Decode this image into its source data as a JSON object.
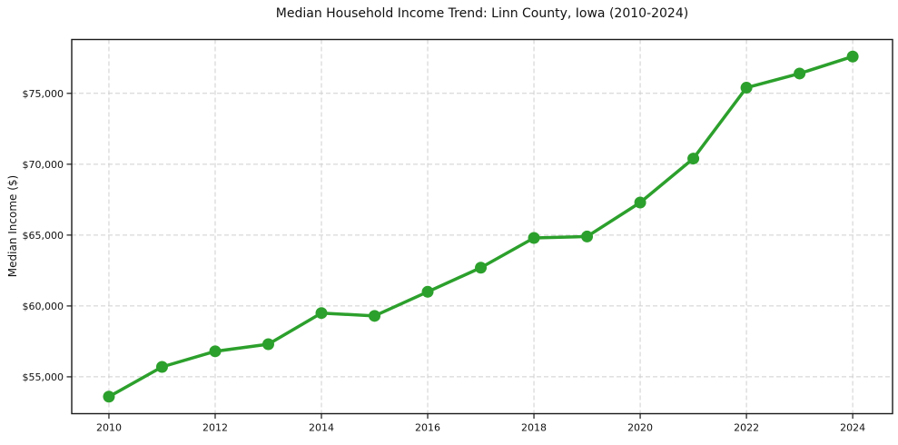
{
  "page": {
    "title": "Median Household Income Trend: Linn County, Iowa (2010-2024)"
  },
  "chart_data": {
    "type": "line",
    "title": "Median Household Income Trend: Linn County, Iowa (2010-2024)",
    "xlabel": "",
    "ylabel": "Median Income ($)",
    "series": [
      {
        "name": "Median Household Income",
        "x": [
          2010,
          2011,
          2012,
          2013,
          2014,
          2015,
          2016,
          2017,
          2018,
          2019,
          2020,
          2021,
          2022,
          2023,
          2024
        ],
        "values": [
          53600,
          55700,
          56800,
          57300,
          59500,
          59300,
          61000,
          62700,
          64800,
          64900,
          67300,
          70400,
          75400,
          76400,
          77600
        ]
      }
    ],
    "xticks": [
      2010,
      2012,
      2014,
      2016,
      2018,
      2020,
      2022,
      2024
    ],
    "xtick_labels": [
      "2010",
      "2012",
      "2014",
      "2016",
      "2018",
      "2020",
      "2022",
      "2024"
    ],
    "yticks": [
      55000,
      60000,
      65000,
      70000,
      75000
    ],
    "ytick_labels": [
      "$55,000",
      "$60,000",
      "$65,000",
      "$70,000",
      "$75,000"
    ],
    "xlim": [
      2009.3,
      2024.75
    ],
    "ylim": [
      52400,
      78800
    ],
    "grid": true,
    "grid_style": "dashed",
    "legend": "none",
    "colors": {
      "line": "#2ca02c",
      "marker": "#2ca02c",
      "grid": "#cfcfcf",
      "spine": "#1a1a1a",
      "background": "#ffffff",
      "text": "#111111"
    },
    "marker": "o",
    "marker_radius": 6.5,
    "line_width": 3.5
  }
}
